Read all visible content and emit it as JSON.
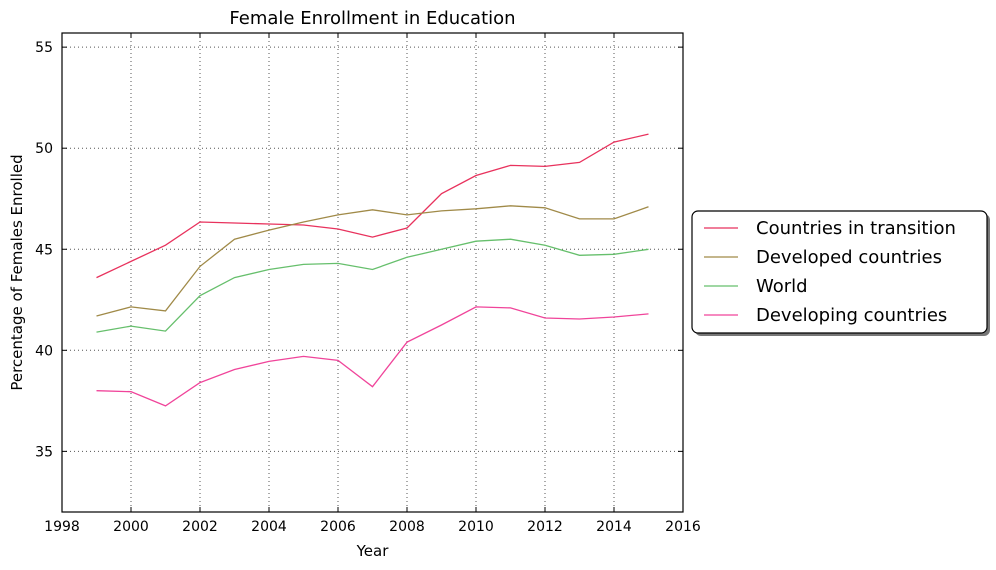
{
  "chart_data": {
    "type": "line",
    "title": "Female Enrollment in Education",
    "xlabel": "Year",
    "ylabel": "Percentage of Females Enrolled",
    "xlim": [
      1998,
      2016
    ],
    "ylim": [
      32,
      55.7
    ],
    "xticks": [
      1998,
      2000,
      2002,
      2004,
      2006,
      2008,
      2010,
      2012,
      2014,
      2016
    ],
    "yticks": [
      35,
      40,
      45,
      50,
      55
    ],
    "grid": true,
    "legend_position": "right",
    "x": [
      1999,
      2000,
      2001,
      2002,
      2003,
      2004,
      2005,
      2006,
      2007,
      2008,
      2009,
      2010,
      2011,
      2012,
      2013,
      2014,
      2015
    ],
    "series": [
      {
        "name": "Countries in transition",
        "color": "#e8325d",
        "values": [
          43.6,
          44.4,
          45.2,
          46.35,
          46.3,
          46.25,
          46.2,
          46.0,
          45.6,
          46.05,
          47.75,
          48.65,
          49.15,
          49.1,
          49.3,
          50.3,
          50.7
        ]
      },
      {
        "name": "Developed countries",
        "color": "#a08a48",
        "values": [
          41.7,
          42.15,
          41.95,
          44.15,
          45.5,
          45.95,
          46.35,
          46.7,
          46.95,
          46.7,
          46.9,
          47.0,
          47.15,
          47.05,
          46.5,
          46.5,
          47.1
        ]
      },
      {
        "name": "World",
        "color": "#66bf6c",
        "values": [
          40.9,
          41.2,
          40.95,
          42.7,
          43.6,
          44.0,
          44.25,
          44.3,
          44.0,
          44.6,
          45.0,
          45.4,
          45.5,
          45.2,
          44.7,
          44.75,
          45.0
        ]
      },
      {
        "name": "Developing countries",
        "color": "#f0449a",
        "values": [
          38.0,
          37.95,
          37.25,
          38.4,
          39.05,
          39.45,
          39.7,
          39.5,
          38.2,
          40.4,
          41.25,
          42.15,
          42.1,
          41.6,
          41.55,
          41.65,
          41.8
        ]
      }
    ]
  }
}
